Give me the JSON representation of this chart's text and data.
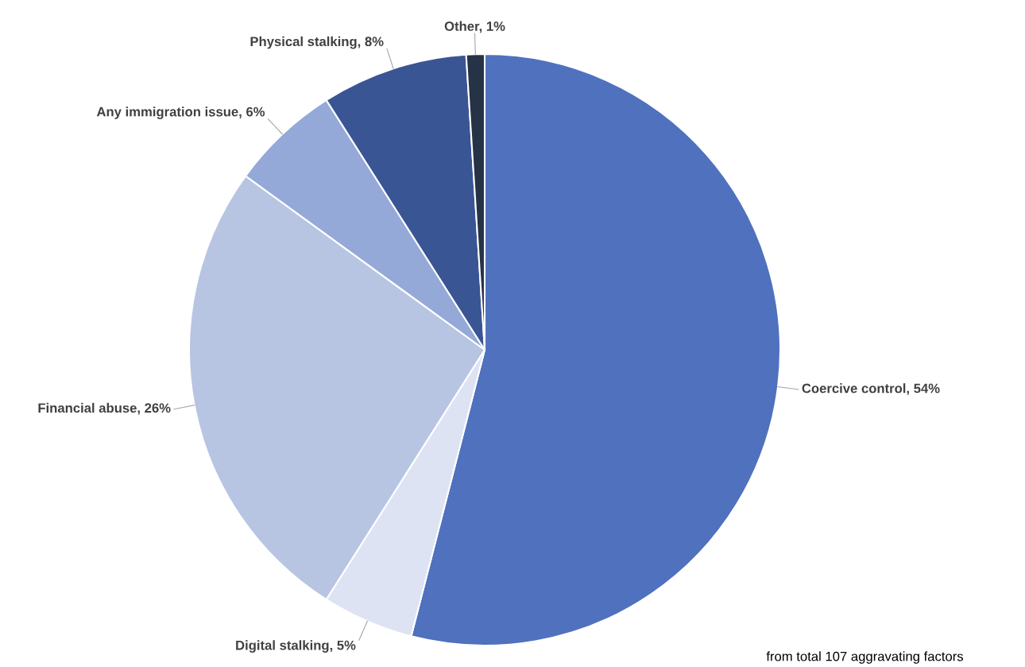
{
  "chart_data": {
    "type": "pie",
    "categories": [
      "Coercive control",
      "Digital stalking",
      "Financial abuse",
      "Any immigration issue",
      "Physical stalking",
      "Other"
    ],
    "values": [
      54,
      5,
      26,
      6,
      8,
      1
    ],
    "value_labels": [
      "54%",
      "5%",
      "26%",
      "6%",
      "8%",
      "1%"
    ],
    "colors": [
      "#4f71be",
      "#dde3f3",
      "#b7c5e3",
      "#95a9d8",
      "#3a5594",
      "#263246"
    ],
    "annotations": [
      "from total 107 aggravating factors"
    ]
  }
}
